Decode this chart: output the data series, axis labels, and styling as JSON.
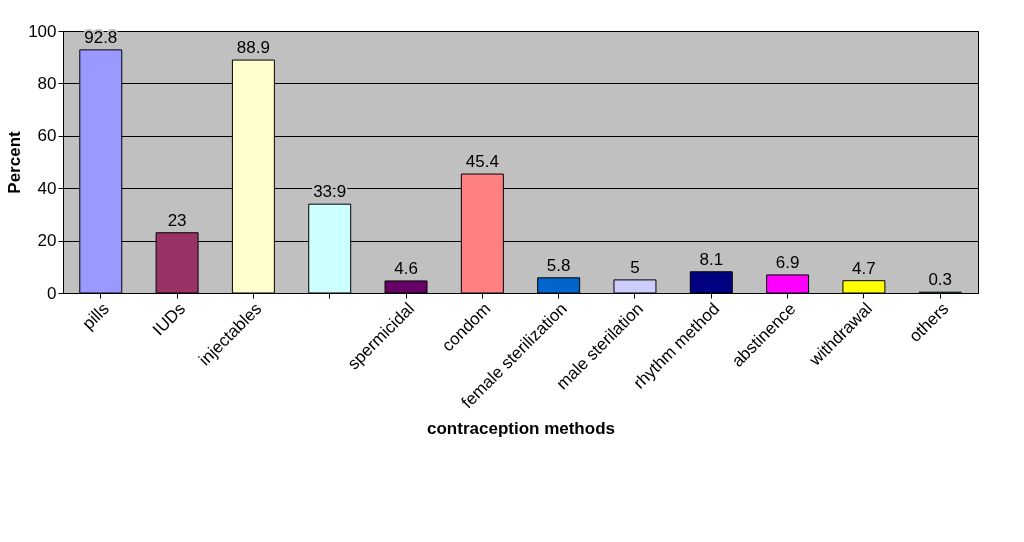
{
  "chart_data": {
    "type": "bar",
    "xlabel": "contraception methods",
    "ylabel": "Percent",
    "categories": [
      "pills",
      "IUDs",
      "injectables",
      null,
      "spermicidal",
      "condom",
      "female sterilization",
      "male sterilation",
      "rhythm method",
      "abstinence",
      "withdrawal",
      "others"
    ],
    "values": [
      92.8,
      23,
      88.9,
      33.9,
      4.6,
      45.4,
      5.8,
      5,
      8.1,
      6.9,
      4.7,
      0.3
    ],
    "colors": [
      "#9999ff",
      "#993366",
      "#ffffcc",
      "#ccffff",
      "#660066",
      "#ff8080",
      "#0066cc",
      "#ccccff",
      "#000080",
      "#ff00ff",
      "#ffff00",
      "#00ffff"
    ],
    "ylim": [
      0,
      100
    ],
    "yticks": [
      0,
      20,
      40,
      60,
      80,
      100
    ],
    "grid": "y",
    "data_labels": true,
    "legend": false
  }
}
